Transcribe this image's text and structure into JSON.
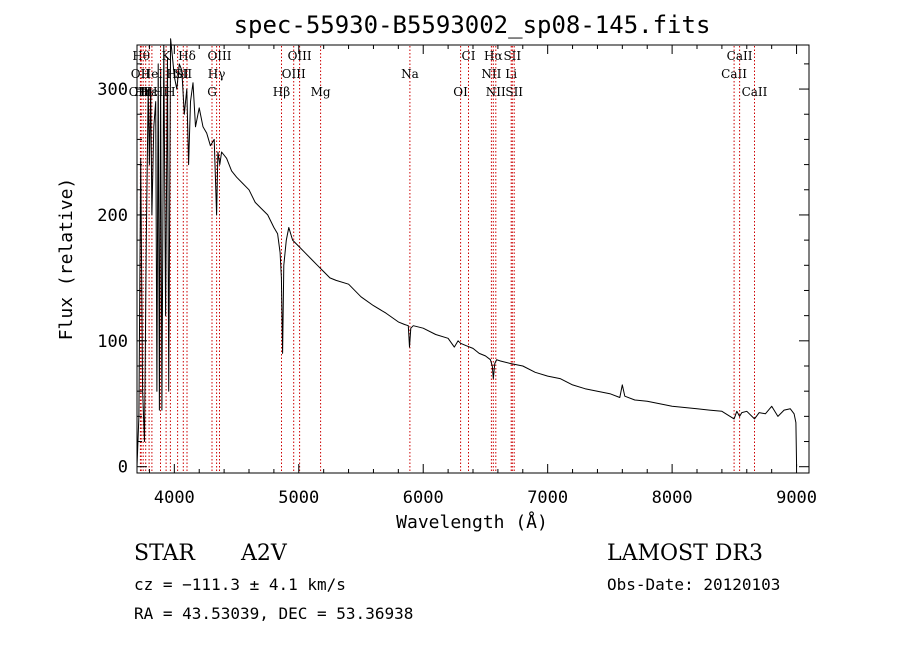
{
  "chart_data": {
    "type": "line",
    "title": "spec-55930-B5593002_sp08-145.fits",
    "xlabel": "Wavelength (Å)",
    "ylabel": "Flux (relative)",
    "xlim": [
      3700,
      9100
    ],
    "ylim": [
      -5,
      335
    ],
    "x_ticks": [
      4000,
      5000,
      6000,
      7000,
      8000,
      9000
    ],
    "y_ticks": [
      0,
      100,
      200,
      300
    ],
    "grid": false,
    "series": [
      {
        "name": "spectrum",
        "x": [
          3700,
          3715,
          3730,
          3745,
          3760,
          3775,
          3790,
          3800,
          3810,
          3820,
          3835,
          3850,
          3860,
          3870,
          3880,
          3890,
          3900,
          3915,
          3930,
          3945,
          3955,
          3970,
          3985,
          4000,
          4020,
          4040,
          4060,
          4080,
          4100,
          4115,
          4130,
          4150,
          4170,
          4200,
          4230,
          4260,
          4290,
          4320,
          4340,
          4350,
          4365,
          4380,
          4420,
          4460,
          4500,
          4550,
          4600,
          4650,
          4700,
          4750,
          4800,
          4830,
          4850,
          4860,
          4870,
          4880,
          4900,
          4920,
          4950,
          5000,
          5050,
          5100,
          5150,
          5200,
          5250,
          5300,
          5400,
          5500,
          5600,
          5700,
          5800,
          5850,
          5880,
          5890,
          5900,
          5920,
          6000,
          6100,
          6200,
          6250,
          6280,
          6300,
          6350,
          6400,
          6450,
          6500,
          6540,
          6555,
          6563,
          6575,
          6590,
          6620,
          6700,
          6800,
          6900,
          7000,
          7100,
          7200,
          7300,
          7400,
          7500,
          7580,
          7600,
          7620,
          7700,
          7800,
          7900,
          8000,
          8100,
          8200,
          8300,
          8400,
          8498,
          8520,
          8542,
          8560,
          8600,
          8662,
          8700,
          8750,
          8800,
          8850,
          8900,
          8950,
          8980,
          8995,
          9000
        ],
        "y": [
          0,
          40,
          245,
          60,
          20,
          180,
          300,
          240,
          300,
          200,
          270,
          290,
          60,
          320,
          45,
          310,
          45,
          335,
          120,
          325,
          60,
          340,
          325,
          310,
          300,
          320,
          315,
          280,
          300,
          240,
          290,
          305,
          270,
          285,
          270,
          265,
          255,
          260,
          200,
          250,
          240,
          250,
          245,
          235,
          230,
          225,
          220,
          210,
          205,
          200,
          190,
          185,
          170,
          150,
          90,
          160,
          180,
          190,
          180,
          175,
          170,
          165,
          160,
          155,
          150,
          148,
          145,
          135,
          128,
          122,
          115,
          113,
          112,
          95,
          110,
          112,
          110,
          105,
          102,
          95,
          100,
          98,
          96,
          94,
          90,
          88,
          85,
          80,
          70,
          82,
          85,
          84,
          82,
          80,
          75,
          72,
          70,
          65,
          62,
          60,
          58,
          55,
          65,
          56,
          53,
          52,
          50,
          48,
          47,
          46,
          45,
          44,
          38,
          44,
          40,
          43,
          44,
          38,
          43,
          42,
          48,
          40,
          45,
          46,
          42,
          35,
          0
        ]
      }
    ],
    "spectral_lines": [
      {
        "wavelength": 3734,
        "label": "Hθ",
        "row": 1
      },
      {
        "wavelength": 3727,
        "label": "OII",
        "row": 2
      },
      {
        "wavelength": 3729,
        "label": "OIII",
        "row": 3
      },
      {
        "wavelength": 3750,
        "label": "Hη",
        "row": 3
      },
      {
        "wavelength": 3770,
        "label": "Hι",
        "row": 3
      },
      {
        "wavelength": 3797,
        "label": "Hε",
        "row": 3
      },
      {
        "wavelength": 3820,
        "label": "HeI",
        "row": 2
      },
      {
        "wavelength": 3889,
        "label": "HI",
        "row": 3
      },
      {
        "wavelength": 3934,
        "label": "K",
        "row": 1
      },
      {
        "wavelength": 3968,
        "label": "H",
        "row": 3
      },
      {
        "wavelength": 4026,
        "label": "HeI",
        "row": 2
      },
      {
        "wavelength": 4072,
        "label": "SII",
        "row": 2
      },
      {
        "wavelength": 4102,
        "label": "Hδ",
        "row": 1
      },
      {
        "wavelength": 4303,
        "label": "G",
        "row": 3
      },
      {
        "wavelength": 4340,
        "label": "Hγ",
        "row": 2
      },
      {
        "wavelength": 4363,
        "label": "OIII",
        "row": 1
      },
      {
        "wavelength": 4861,
        "label": "Hβ",
        "row": 3
      },
      {
        "wavelength": 4959,
        "label": "OIII",
        "row": 2
      },
      {
        "wavelength": 5007,
        "label": "OIII",
        "row": 1
      },
      {
        "wavelength": 5175,
        "label": "Mg",
        "row": 3
      },
      {
        "wavelength": 5893,
        "label": "Na",
        "row": 2
      },
      {
        "wavelength": 6300,
        "label": "OI",
        "row": 3
      },
      {
        "wavelength": 6364,
        "label": "CI",
        "row": 1
      },
      {
        "wavelength": 6548,
        "label": "NII",
        "row": 2
      },
      {
        "wavelength": 6563,
        "label": "Hα",
        "row": 1
      },
      {
        "wavelength": 6583,
        "label": "NII",
        "row": 3
      },
      {
        "wavelength": 6707,
        "label": "Li",
        "row": 2
      },
      {
        "wavelength": 6716,
        "label": "SII",
        "row": 1
      },
      {
        "wavelength": 6731,
        "label": "SII",
        "row": 3
      },
      {
        "wavelength": 8498,
        "label": "CaII",
        "row": 2
      },
      {
        "wavelength": 8542,
        "label": "CaII",
        "row": 1
      },
      {
        "wavelength": 8662,
        "label": "CaII",
        "row": 3
      }
    ]
  },
  "info": {
    "class_label": "STAR",
    "subclass": "A2V",
    "cz": "cz = −111.3 ± 4.1 km/s",
    "radec": "RA =  43.53039, DEC =  53.36938",
    "survey": "LAMOST DR3",
    "obs_date": "Obs-Date: 20120103"
  },
  "colors": {
    "line": "#000000",
    "marker": "#cc0000",
    "axis": "#000000"
  }
}
